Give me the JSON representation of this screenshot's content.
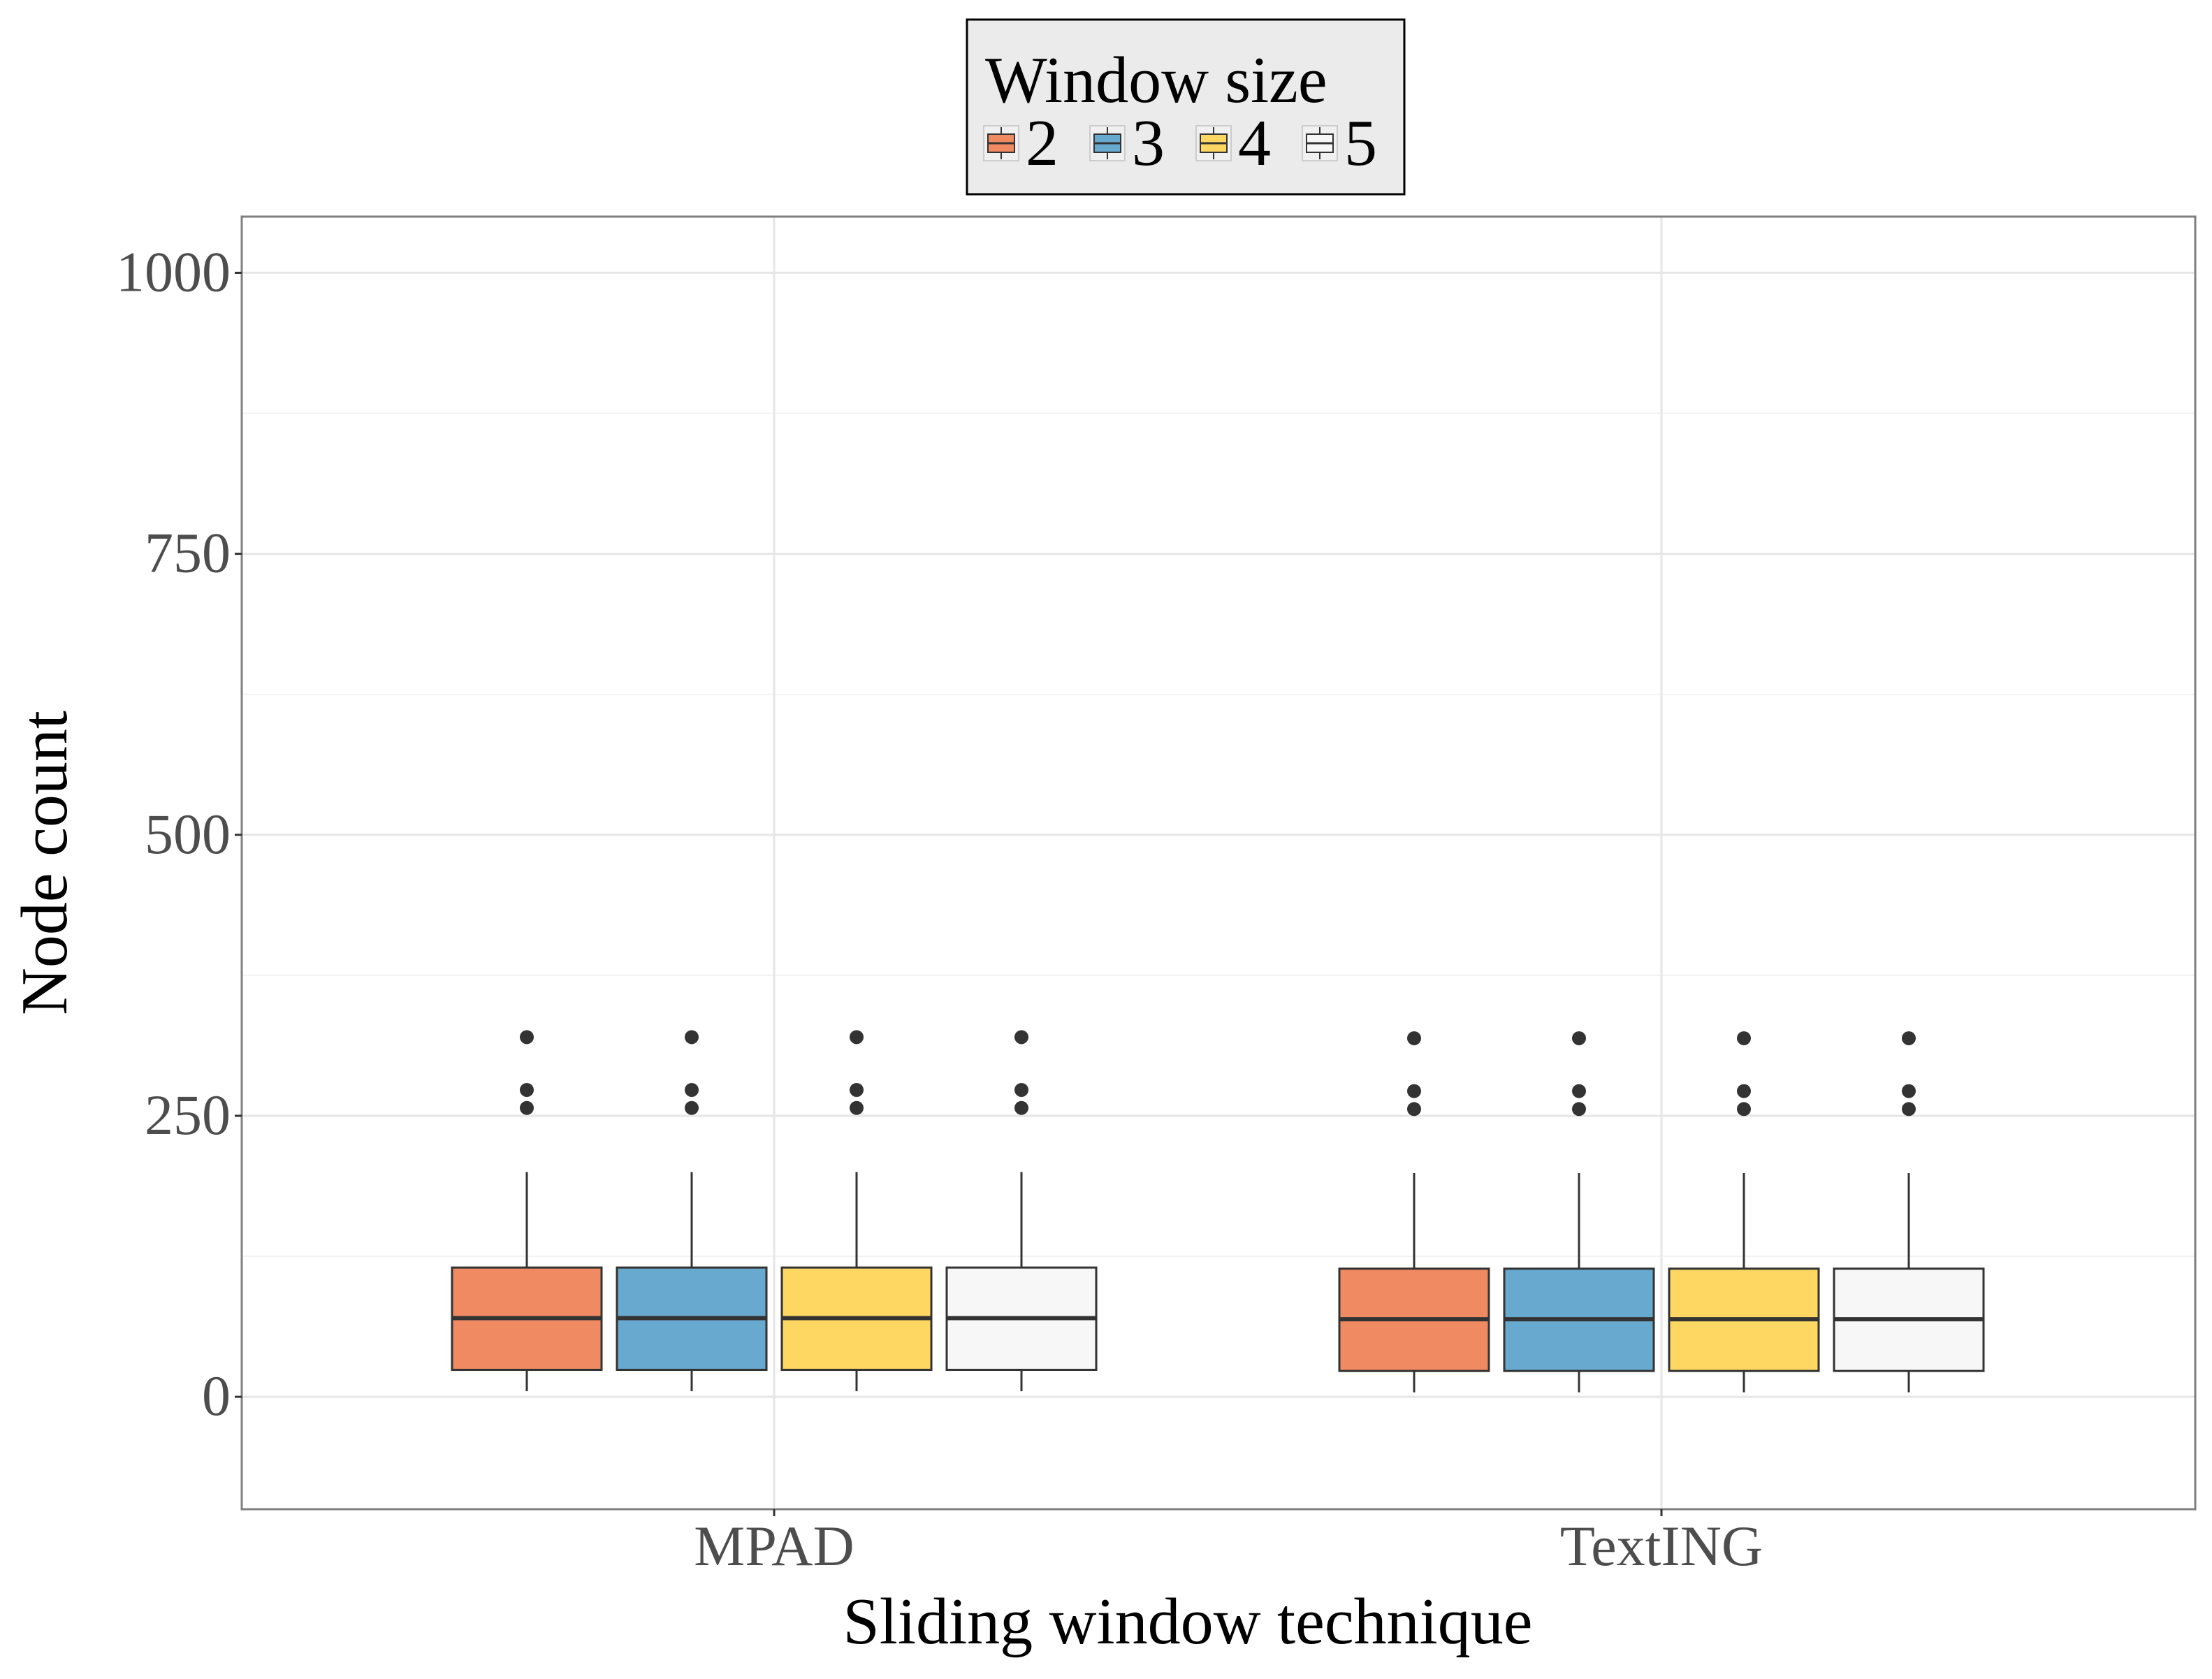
{
  "chart_data": {
    "type": "boxplot",
    "title": "",
    "xlabel": "Sliding window technique",
    "ylabel": "Node count",
    "ylim": [
      -100,
      1050
    ],
    "yticks": [
      0,
      250,
      500,
      750,
      1000
    ],
    "ytick_labels": [
      "0",
      "250",
      "500",
      "750",
      "1000"
    ],
    "grid": true,
    "legend": {
      "title": "Window size",
      "position": "top"
    },
    "categories": [
      "MPAD",
      "TextING"
    ],
    "series": [
      {
        "name": "2",
        "color": "#EF8A62",
        "boxes": [
          {
            "category": "MPAD",
            "whisker_low": 5,
            "q1": 24,
            "median": 70,
            "q3": 115,
            "whisker_high": 200,
            "outliers": [
              257,
              273,
              320
            ]
          },
          {
            "category": "TextING",
            "whisker_low": 4,
            "q1": 23,
            "median": 69,
            "q3": 114,
            "whisker_high": 199,
            "outliers": [
              256,
              272,
              319
            ]
          }
        ]
      },
      {
        "name": "3",
        "color": "#67A9CF",
        "boxes": [
          {
            "category": "MPAD",
            "whisker_low": 5,
            "q1": 24,
            "median": 70,
            "q3": 115,
            "whisker_high": 200,
            "outliers": [
              257,
              273,
              320
            ]
          },
          {
            "category": "TextING",
            "whisker_low": 4,
            "q1": 23,
            "median": 69,
            "q3": 114,
            "whisker_high": 199,
            "outliers": [
              256,
              272,
              319
            ]
          }
        ]
      },
      {
        "name": "4",
        "color": "#FDD762",
        "boxes": [
          {
            "category": "MPAD",
            "whisker_low": 5,
            "q1": 24,
            "median": 70,
            "q3": 115,
            "whisker_high": 200,
            "outliers": [
              257,
              273,
              320
            ]
          },
          {
            "category": "TextING",
            "whisker_low": 4,
            "q1": 23,
            "median": 69,
            "q3": 114,
            "whisker_high": 199,
            "outliers": [
              256,
              272,
              319
            ]
          }
        ]
      },
      {
        "name": "5",
        "color": "#F7F7F7",
        "boxes": [
          {
            "category": "MPAD",
            "whisker_low": 5,
            "q1": 24,
            "median": 70,
            "q3": 115,
            "whisker_high": 200,
            "outliers": [
              257,
              273,
              320
            ]
          },
          {
            "category": "TextING",
            "whisker_low": 4,
            "q1": 23,
            "median": 69,
            "q3": 114,
            "whisker_high": 199,
            "outliers": [
              256,
              272,
              319
            ]
          }
        ]
      }
    ]
  }
}
